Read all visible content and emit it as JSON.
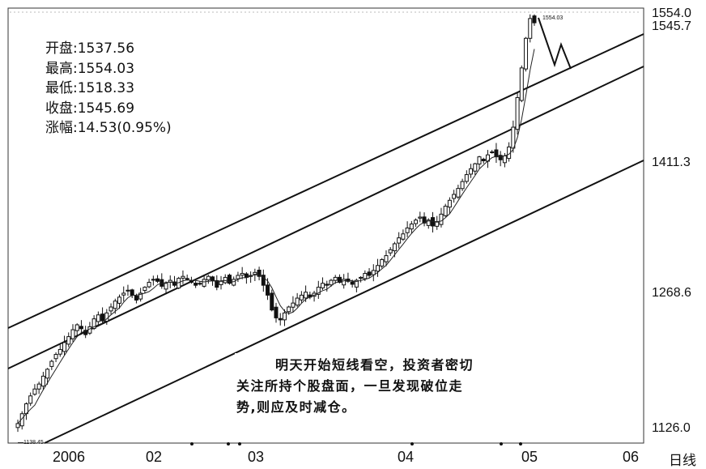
{
  "info": [
    {
      "label": "开盘",
      "value": "1537.56"
    },
    {
      "label": "最高",
      "value": "1554.03"
    },
    {
      "label": "最低",
      "value": "1518.33"
    },
    {
      "label": "收盘",
      "value": "1545.69"
    },
    {
      "label": "涨幅",
      "value": "14.53(0.95%)"
    }
  ],
  "note": {
    "line1": "明天开始短线看空，投资者密切",
    "line2": "关注所持个股盘面，一旦发现破位走",
    "line3": "势,则应及时减仓。"
  },
  "y_labels": {
    "top": "1554.0",
    "second": "1545.7",
    "third": "1411.3",
    "fourth": "1268.6",
    "bottom": "1126.0"
  },
  "x_labels": [
    "2006",
    "02",
    "03",
    "04",
    "05",
    "06"
  ],
  "period_label": "日线",
  "peak_annotation": "1554.03",
  "low_annotation": "1138.45",
  "chart_data": {
    "type": "candlestick",
    "title": "",
    "xlabel": "",
    "ylabel": "",
    "ylim": [
      1126.0,
      1554.0
    ],
    "y_ticks": [
      1126.0,
      1268.6,
      1411.3,
      1545.7,
      1554.0
    ],
    "x_ticks": [
      "2006",
      "02",
      "03",
      "04",
      "05",
      "06"
    ],
    "last_bar": {
      "open": 1537.56,
      "high": 1554.03,
      "low": 1518.33,
      "close": 1545.69,
      "change": 14.53,
      "change_pct": 0.95
    },
    "period_high": 1554.03,
    "period_low": 1138.45,
    "closes": [
      1140,
      1150,
      1160,
      1168,
      1175,
      1180,
      1188,
      1195,
      1203,
      1210,
      1215,
      1222,
      1228,
      1235,
      1240,
      1236,
      1230,
      1238,
      1246,
      1250,
      1244,
      1252,
      1258,
      1264,
      1268,
      1272,
      1275,
      1270,
      1265,
      1272,
      1278,
      1283,
      1286,
      1284,
      1279,
      1282,
      1285,
      1280,
      1287,
      1289,
      1286,
      1283,
      1280,
      1282,
      1286,
      1289,
      1285,
      1278,
      1284,
      1288,
      1282,
      1286,
      1290,
      1292,
      1288,
      1290,
      1293,
      1289,
      1280,
      1270,
      1255,
      1247,
      1245,
      1252,
      1258,
      1262,
      1267,
      1270,
      1273,
      1268,
      1272,
      1278,
      1282,
      1280,
      1285,
      1288,
      1283,
      1286,
      1284,
      1281,
      1285,
      1288,
      1292,
      1290,
      1295,
      1300,
      1306,
      1310,
      1316,
      1322,
      1328,
      1332,
      1338,
      1342,
      1346,
      1349,
      1343,
      1346,
      1340,
      1344,
      1352,
      1360,
      1366,
      1372,
      1378,
      1385,
      1392,
      1398,
      1403,
      1410,
      1406,
      1412,
      1415,
      1410,
      1407,
      1411,
      1420,
      1440,
      1470,
      1500,
      1530,
      1550,
      1545.69
    ],
    "trend_channels": [
      {
        "name": "upper"
      },
      {
        "name": "middle"
      },
      {
        "name": "lower"
      }
    ]
  },
  "colors": {
    "background": "#ffffff",
    "line": "#111111",
    "frame": "#333333",
    "grid": "#cccccc"
  }
}
